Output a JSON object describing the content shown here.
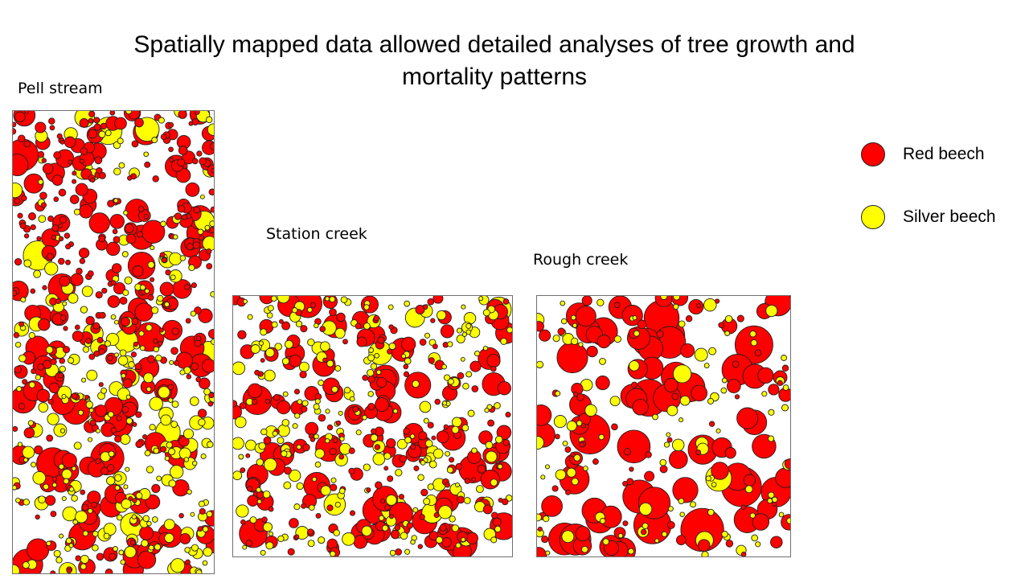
{
  "title": "Spatially mapped data allowed detailed analyses of tree growth and mortality patterns",
  "colors": {
    "red_beech": "#ff0000",
    "silver_beech": "#ffff00",
    "outline": "#202020"
  },
  "legend": [
    {
      "label": "Red beech",
      "color": "#ff0000"
    },
    {
      "label": "Silver beech",
      "color": "#ffff00"
    }
  ],
  "plots": [
    {
      "key": "pell",
      "label": "Pell stream"
    },
    {
      "key": "station",
      "label": "Station creek"
    },
    {
      "key": "rough",
      "label": "Rough creek"
    }
  ]
}
